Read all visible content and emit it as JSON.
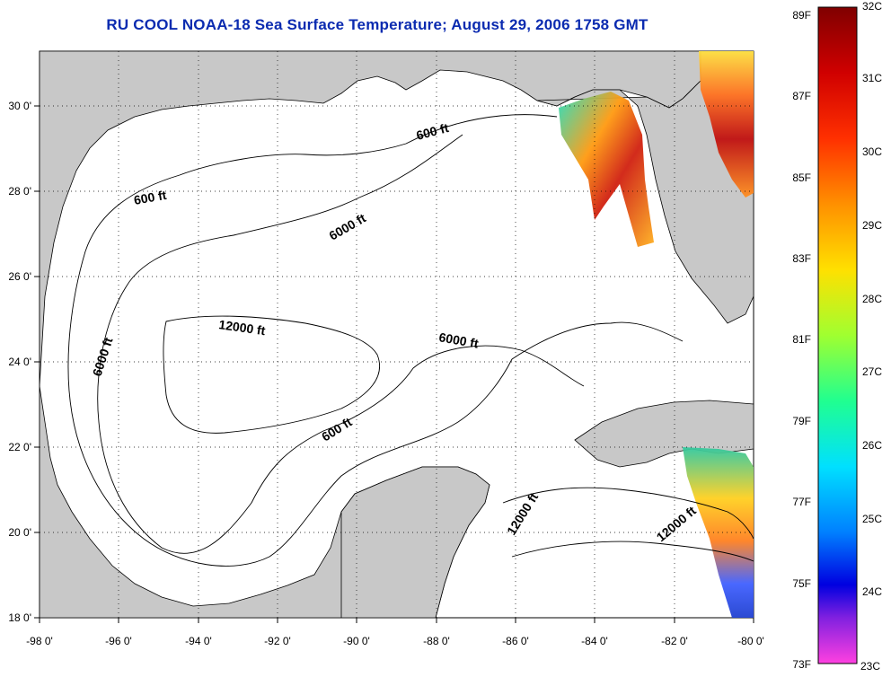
{
  "title": "RU COOL  NOAA-18  Sea Surface Temperature;  August 29, 2006 1758 GMT",
  "map": {
    "lon_range": [
      -98,
      -80
    ],
    "lat_range": [
      18,
      31.3
    ],
    "lon_ticks": [
      "-98 0'",
      "-96 0'",
      "-94 0'",
      "-92 0'",
      "-90 0'",
      "-88 0'",
      "-86 0'",
      "-84 0'",
      "-82 0'",
      "-80 0'"
    ],
    "lat_ticks": [
      "18 0'",
      "20 0'",
      "22 0'",
      "24 0'",
      "26 0'",
      "28 0'",
      "30 0'"
    ],
    "grid": "dotted",
    "land_color": "#c8c8c8",
    "water_color": "#ffffff",
    "contour_labels": [
      "600 ft",
      "600 ft",
      "6000 ft",
      "12000 ft",
      "6000 ft",
      "6000 ft",
      "600 ft",
      "12000 ft",
      "12000 ft"
    ]
  },
  "colorbar": {
    "fahrenheit": [
      "89F",
      "87F",
      "85F",
      "83F",
      "81F",
      "79F",
      "77F",
      "75F",
      "73F"
    ],
    "celsius": [
      "32C",
      "31C",
      "30C",
      "29C",
      "28C",
      "27C",
      "26C",
      "25C",
      "24C",
      "23C"
    ],
    "range_c": [
      23,
      32
    ]
  }
}
